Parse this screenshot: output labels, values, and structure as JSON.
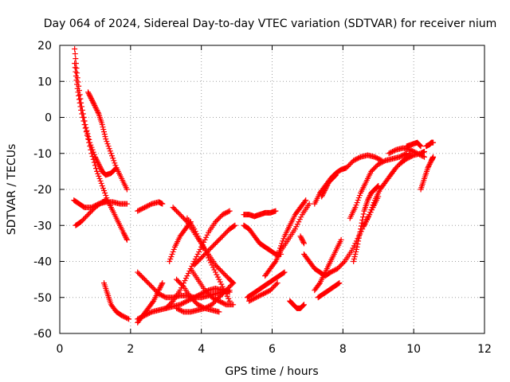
{
  "chart_data": {
    "type": "scatter",
    "title": "Day 064 of 2024, Sidereal Day-to-day VTEC variation (SDTVAR) for receiver nium",
    "xlabel": "GPS time / hours",
    "ylabel": "SDTVAR / TECUs",
    "xlim": [
      0,
      12
    ],
    "ylim": [
      -60,
      20
    ],
    "xticks": [
      0,
      2,
      4,
      6,
      8,
      10,
      12
    ],
    "yticks": [
      -60,
      -50,
      -40,
      -30,
      -20,
      -10,
      0,
      10,
      20
    ],
    "grid": true,
    "legend": "none",
    "marker": "plus",
    "color": "#ff0000",
    "series": [
      {
        "x": [
          0.42,
          0.5,
          0.6,
          0.72,
          0.85,
          1.0,
          1.1,
          1.2,
          1.3,
          1.45,
          1.6
        ],
        "y": [
          19,
          11,
          4,
          -2,
          -7,
          -11,
          -13,
          -15,
          -16,
          -15.5,
          -14
        ]
      },
      {
        "x": [
          0.42,
          0.5,
          0.6,
          0.75,
          0.9,
          1.05,
          1.2,
          1.35,
          1.5,
          1.65,
          1.8,
          1.9
        ],
        "y": [
          15,
          8,
          2,
          -4,
          -10,
          -15,
          -19,
          -23,
          -26,
          -29,
          -32,
          -34
        ]
      },
      {
        "x": [
          0.8,
          0.9,
          1.0,
          1.1,
          1.2,
          1.3,
          1.45,
          1.6,
          1.75,
          1.9
        ],
        "y": [
          7,
          5,
          3,
          1,
          -2,
          -6,
          -10,
          -14,
          -17,
          -20
        ]
      },
      {
        "x": [
          0.4,
          0.55,
          0.7,
          0.9,
          1.1,
          1.3,
          1.5,
          1.7,
          1.9
        ],
        "y": [
          -23,
          -24,
          -25,
          -25,
          -24,
          -23.5,
          -23.5,
          -24,
          -24
        ]
      },
      {
        "x": [
          0.45,
          0.6,
          0.8,
          1.0,
          1.2,
          1.35
        ],
        "y": [
          -30,
          -29,
          -27,
          -25,
          -23.5,
          -23
        ]
      },
      {
        "x": [
          1.25,
          1.35,
          1.45,
          1.6,
          1.75,
          1.95
        ],
        "y": [
          -46,
          -49,
          -52,
          -54,
          -55,
          -56
        ]
      },
      {
        "x": [
          2.2,
          2.4,
          2.6,
          2.8,
          3.0,
          3.2,
          3.4,
          3.6,
          3.8,
          4.0,
          4.2,
          4.4,
          4.6,
          4.8
        ],
        "y": [
          -43,
          -45,
          -47,
          -49,
          -50,
          -50,
          -49.5,
          -49.5,
          -50,
          -50,
          -49.5,
          -49,
          -48.5,
          -48
        ]
      },
      {
        "x": [
          2.2,
          2.4,
          2.6,
          2.8,
          3.0,
          3.2,
          3.4,
          3.6,
          3.8,
          4.0,
          4.2,
          4.4,
          4.6,
          4.8
        ],
        "y": [
          -56,
          -55,
          -54,
          -53.5,
          -53,
          -52.5,
          -52,
          -51,
          -50,
          -49,
          -48,
          -47.5,
          -48,
          -48.5
        ]
      },
      {
        "x": [
          2.2,
          2.35,
          2.5,
          2.65,
          2.8,
          2.9
        ],
        "y": [
          -57,
          -55,
          -53,
          -51,
          -48,
          -46
        ]
      },
      {
        "x": [
          2.2,
          2.4,
          2.6,
          2.8,
          2.9
        ],
        "y": [
          -26,
          -25,
          -24,
          -23.5,
          -24
        ]
      },
      {
        "x": [
          3.0,
          3.2,
          3.4,
          3.6,
          3.8,
          4.0,
          4.2,
          4.4,
          4.6,
          4.8
        ],
        "y": [
          -53,
          -51,
          -48,
          -44,
          -40,
          -36,
          -32,
          -29,
          -27,
          -26
        ]
      },
      {
        "x": [
          3.1,
          3.25,
          3.4,
          3.55,
          3.7
        ],
        "y": [
          -40,
          -36,
          -33,
          -31,
          -29
        ]
      },
      {
        "x": [
          3.2,
          3.4,
          3.6,
          3.8,
          4.0,
          4.2,
          4.4,
          4.6,
          4.8,
          4.9
        ],
        "y": [
          -25,
          -27,
          -29,
          -32,
          -35,
          -38,
          -41,
          -43,
          -45,
          -46
        ]
      },
      {
        "x": [
          3.3,
          3.5,
          3.7,
          3.9,
          4.1,
          4.3,
          4.5
        ],
        "y": [
          -45,
          -47,
          -50,
          -52,
          -53,
          -53.5,
          -54
        ]
      },
      {
        "x": [
          3.6,
          3.8,
          4.0,
          4.2,
          4.4,
          4.6,
          4.8
        ],
        "y": [
          -28,
          -31,
          -35,
          -39,
          -43,
          -47,
          -51
        ]
      },
      {
        "x": [
          3.7,
          3.9,
          4.1,
          4.3,
          4.5,
          4.7,
          4.9
        ],
        "y": [
          -42,
          -45,
          -48,
          -50,
          -51,
          -52,
          -52
        ]
      },
      {
        "x": [
          3.3,
          3.5,
          3.7,
          3.9,
          4.1,
          4.3,
          4.5,
          4.7,
          4.9
        ],
        "y": [
          -53,
          -54,
          -54,
          -53.5,
          -53,
          -52,
          -50,
          -48,
          -46
        ]
      },
      {
        "x": [
          3.8,
          4.0,
          4.2,
          4.4,
          4.6,
          4.8,
          4.95
        ],
        "y": [
          -41,
          -39,
          -37,
          -35,
          -33,
          -31,
          -30
        ]
      },
      {
        "x": [
          5.2,
          5.35,
          5.5,
          5.65,
          5.8,
          5.95,
          6.1
        ],
        "y": [
          -27,
          -27,
          -27.5,
          -27,
          -26.5,
          -26.5,
          -26
        ]
      },
      {
        "x": [
          5.2,
          5.35,
          5.5,
          5.65,
          5.8,
          5.95,
          6.1,
          6.25
        ],
        "y": [
          -30,
          -31,
          -33,
          -35,
          -36,
          -37,
          -38,
          -38
        ]
      },
      {
        "x": [
          5.3,
          5.45,
          5.6,
          5.75,
          5.9,
          6.05,
          6.2,
          6.35
        ],
        "y": [
          -50,
          -49,
          -48,
          -47,
          -46,
          -45,
          -44,
          -43
        ]
      },
      {
        "x": [
          5.35,
          5.55,
          5.75,
          5.95,
          6.15
        ],
        "y": [
          -51,
          -50,
          -49,
          -48,
          -46
        ]
      },
      {
        "x": [
          5.8,
          5.95,
          6.1,
          6.25,
          6.45,
          6.65,
          6.85,
          7.05
        ],
        "y": [
          -44,
          -42,
          -40,
          -37,
          -34,
          -31,
          -27,
          -24
        ]
      },
      {
        "x": [
          6.2,
          6.35,
          6.5,
          6.65,
          6.8,
          6.95
        ],
        "y": [
          -37,
          -33,
          -30,
          -27,
          -25,
          -23
        ]
      },
      {
        "x": [
          6.5,
          6.6,
          6.7,
          6.8,
          6.9
        ],
        "y": [
          -51,
          -52,
          -53,
          -53,
          -52
        ]
      },
      {
        "x": [
          6.8,
          6.9
        ],
        "y": [
          -33,
          -35
        ]
      },
      {
        "x": [
          6.9,
          7.05,
          7.2,
          7.35,
          7.5,
          7.65,
          7.85,
          8.05,
          8.25,
          8.45,
          8.65,
          8.85,
          9.0
        ],
        "y": [
          -38,
          -40,
          -42,
          -43,
          -44,
          -43,
          -42,
          -40,
          -37,
          -33,
          -29,
          -25,
          -22
        ]
      },
      {
        "x": [
          7.2,
          7.35,
          7.5,
          7.65,
          7.8,
          7.95
        ],
        "y": [
          -48,
          -46,
          -43,
          -40,
          -37,
          -34
        ]
      },
      {
        "x": [
          7.3,
          7.45,
          7.6,
          7.75,
          7.9
        ],
        "y": [
          -50,
          -49,
          -48,
          -47,
          -46
        ]
      },
      {
        "x": [
          7.2,
          7.35,
          7.5,
          7.65,
          7.8,
          7.95,
          8.1,
          8.3,
          8.5,
          8.7,
          8.9,
          9.1
        ],
        "y": [
          -24,
          -21,
          -19,
          -17,
          -15.5,
          -14.5,
          -14,
          -12,
          -11,
          -10.5,
          -11,
          -12
        ]
      },
      {
        "x": [
          7.4,
          7.5,
          7.6,
          7.7,
          7.8
        ],
        "y": [
          -22,
          -20,
          -18,
          -17,
          -16
        ]
      },
      {
        "x": [
          8.2,
          8.35,
          8.5,
          8.65,
          8.8,
          9.0,
          9.2,
          9.4,
          9.6,
          9.8
        ],
        "y": [
          -28,
          -25,
          -21,
          -18,
          -15,
          -13,
          -12,
          -11.5,
          -11,
          -10
        ]
      },
      {
        "x": [
          8.3,
          8.4,
          8.5,
          8.6,
          8.7,
          8.8,
          8.9,
          9.0
        ],
        "y": [
          -40,
          -36,
          -31,
          -26,
          -23,
          -21,
          -20,
          -19
        ]
      },
      {
        "x": [
          8.6,
          8.75,
          8.9,
          9.05,
          9.2,
          9.35,
          9.5,
          9.7,
          9.9
        ],
        "y": [
          -30,
          -27,
          -23,
          -20,
          -18,
          -16,
          -14,
          -12,
          -10
        ]
      },
      {
        "x": [
          9.3,
          9.5,
          9.7,
          9.9,
          10.1,
          10.3
        ],
        "y": [
          -10,
          -9,
          -8.5,
          -9,
          -10,
          -11
        ]
      },
      {
        "x": [
          9.6,
          9.8,
          10.0,
          10.2,
          10.3
        ],
        "y": [
          -13,
          -11.5,
          -10.5,
          -10,
          -9.5
        ]
      },
      {
        "x": [
          9.8,
          9.95,
          10.1,
          10.2
        ],
        "y": [
          -8,
          -7.5,
          -7,
          -8
        ]
      },
      {
        "x": [
          10.2,
          10.3,
          10.4,
          10.5,
          10.55
        ],
        "y": [
          -20,
          -17,
          -14,
          -12,
          -11
        ]
      },
      {
        "x": [
          10.35,
          10.45,
          10.5,
          10.55
        ],
        "y": [
          -8,
          -7.5,
          -7,
          -7
        ]
      }
    ]
  }
}
